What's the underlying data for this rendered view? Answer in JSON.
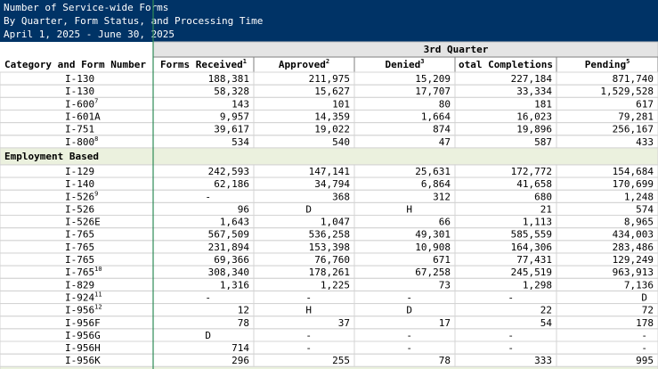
{
  "header": {
    "title_lines": [
      "Number of Service-wide Forms",
      "By Quarter, Form Status, and Processing Time",
      "April 1, 2025 - June 30, 2025"
    ]
  },
  "table": {
    "group_header": "3rd Quarter",
    "columns": [
      {
        "label": "Category and Form Number"
      },
      {
        "label": "Forms Received",
        "note": "1"
      },
      {
        "label": "Approved",
        "note": "2"
      },
      {
        "label": "Denied",
        "note": "3"
      },
      {
        "label": "otal Completions"
      },
      {
        "label": "Pending",
        "note": "5"
      }
    ],
    "sections": [
      {
        "rows": [
          {
            "form": "I-130",
            "cells": [
              "188,381",
              "211,975",
              "15,209",
              "227,184",
              "871,740"
            ]
          },
          {
            "form": "I-130",
            "cells": [
              "58,328",
              "15,627",
              "17,707",
              "33,334",
              "1,529,528"
            ]
          },
          {
            "form": "I-600",
            "note": "7",
            "cells": [
              "143",
              "101",
              "80",
              "181",
              "617"
            ]
          },
          {
            "form": "I-601A",
            "cells": [
              "9,957",
              "14,359",
              "1,664",
              "16,023",
              "79,281"
            ]
          },
          {
            "form": "I-751",
            "cells": [
              "39,617",
              "19,022",
              "874",
              "19,896",
              "256,167"
            ]
          },
          {
            "form": "I-800",
            "note": "8",
            "cells": [
              "534",
              "540",
              "47",
              "587",
              "433"
            ]
          }
        ]
      },
      {
        "label": "Employment Based",
        "rows": [
          {
            "form": "I-129",
            "cells": [
              "242,593",
              "147,141",
              "25,631",
              "172,772",
              "154,684"
            ]
          },
          {
            "form": "I-140",
            "cells": [
              "62,186",
              "34,794",
              "6,864",
              "41,658",
              "170,699"
            ]
          },
          {
            "form": "I-526",
            "note": "9",
            "cells": [
              "-",
              "368",
              "312",
              "680",
              "1,248"
            ]
          },
          {
            "form": "I-526",
            "cells": [
              "96",
              "D",
              "H",
              "21",
              "574"
            ]
          },
          {
            "form": "I-526E",
            "cells": [
              "1,643",
              "1,047",
              "66",
              "1,113",
              "8,965"
            ]
          },
          {
            "form": "I-765",
            "cells": [
              "567,509",
              "536,258",
              "49,301",
              "585,559",
              "434,003"
            ]
          },
          {
            "form": "I-765",
            "cells": [
              "231,894",
              "153,398",
              "10,908",
              "164,306",
              "283,486"
            ]
          },
          {
            "form": "I-765",
            "cells": [
              "69,366",
              "76,760",
              "671",
              "77,431",
              "129,249"
            ]
          },
          {
            "form": "I-765",
            "note": "10",
            "cells": [
              "308,340",
              "178,261",
              "67,258",
              "245,519",
              "963,913"
            ]
          },
          {
            "form": "I-829",
            "cells": [
              "1,316",
              "1,225",
              "73",
              "1,298",
              "7,136"
            ]
          },
          {
            "form": "I-924",
            "note": "11",
            "cells": [
              "-",
              "-",
              "-",
              "-",
              "D"
            ]
          },
          {
            "form": "I-956",
            "note": "12",
            "cells": [
              "12",
              "H",
              "D",
              "22",
              "72"
            ]
          },
          {
            "form": "I-956F",
            "cells": [
              "78",
              "37",
              "17",
              "54",
              "178"
            ]
          },
          {
            "form": "I-956G",
            "cells": [
              "D",
              "-",
              "-",
              "-",
              "-"
            ]
          },
          {
            "form": "I-956H",
            "cells": [
              "714",
              "-",
              "-",
              "-",
              "-"
            ]
          },
          {
            "form": "I-956K",
            "cells": [
              "296",
              "255",
              "78",
              "333",
              "995"
            ]
          }
        ]
      }
    ]
  }
}
